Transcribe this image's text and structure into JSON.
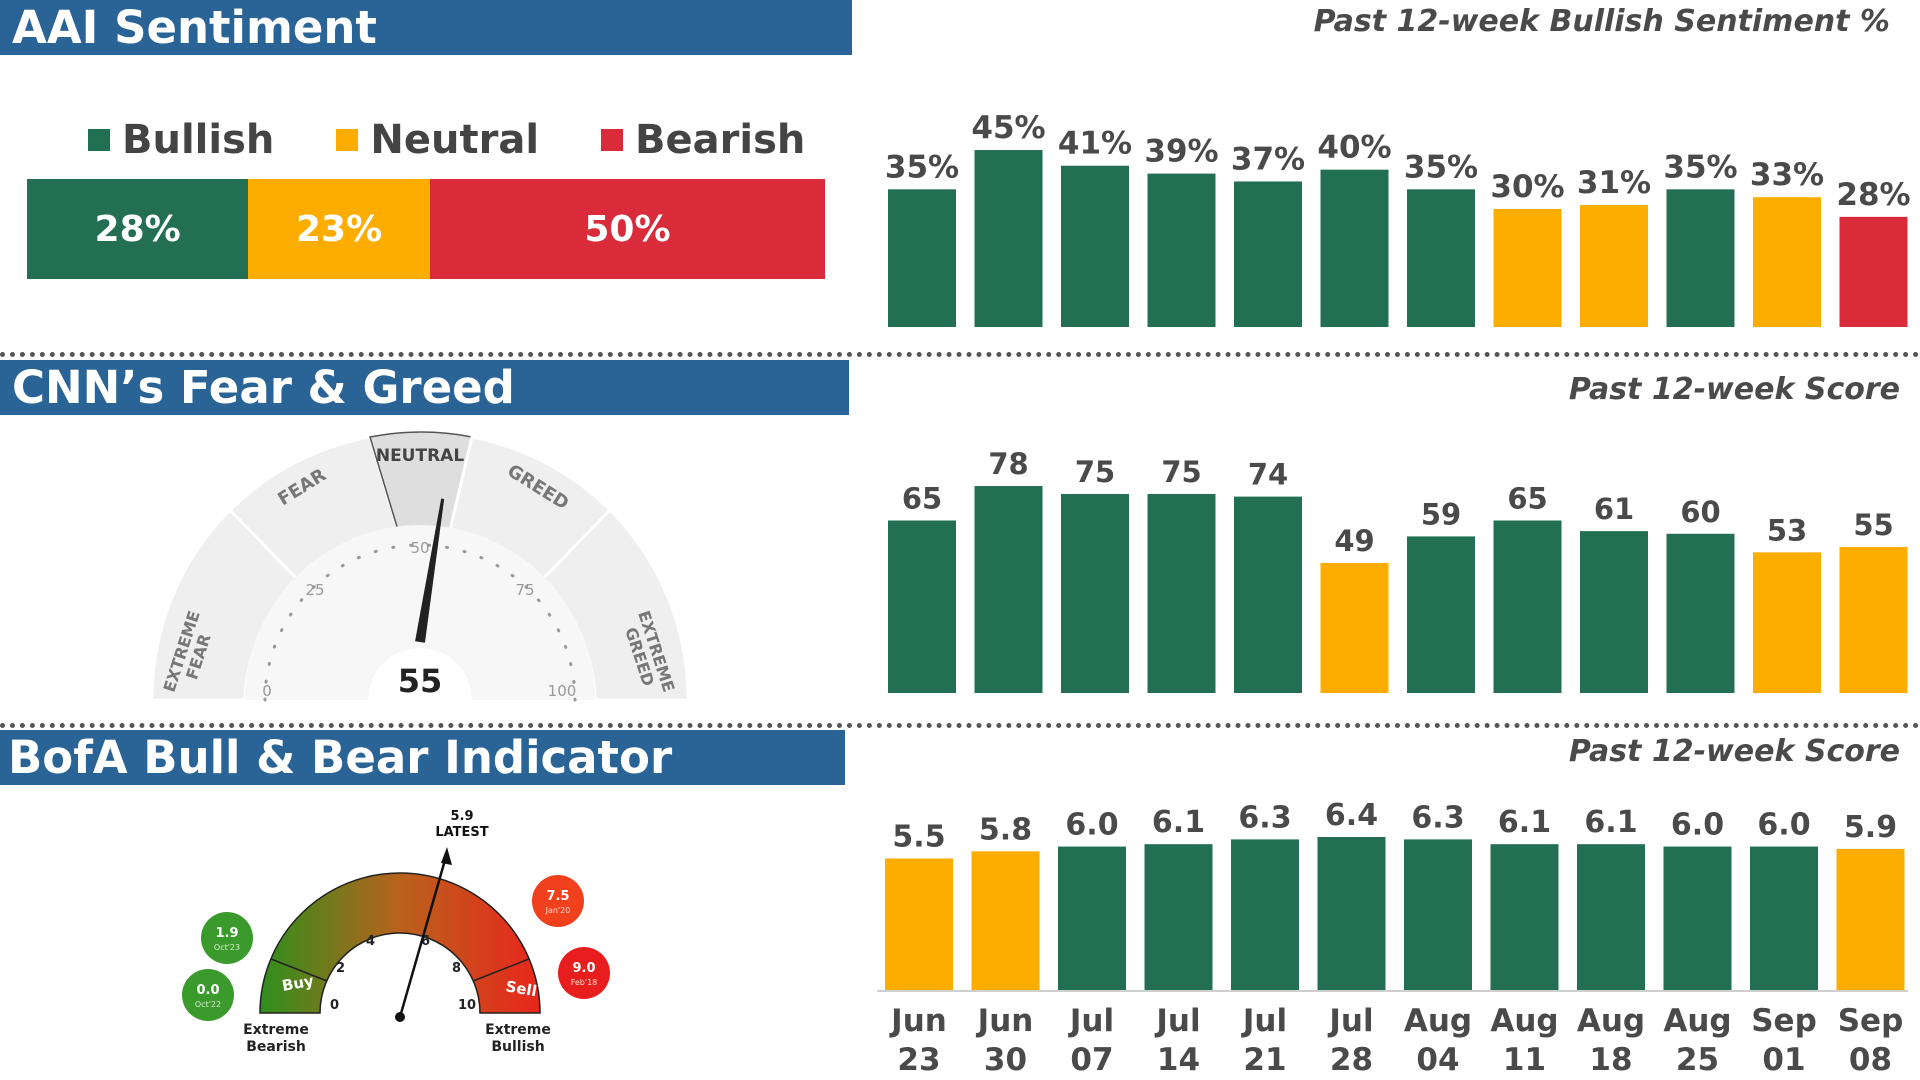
{
  "colors": {
    "green": "#226f54",
    "orange": "#fdac00",
    "red": "#d92b3a",
    "header": "#2a6496"
  },
  "aai": {
    "title": "AAI Sentiment",
    "subtitle": "Past 12-week Bullish Sentiment %",
    "legend": [
      "Bullish",
      "Neutral",
      "Bearish"
    ],
    "breakdown": [
      {
        "label": "28%",
        "value": 28,
        "color": "#226f54",
        "text_color": "#ffffff"
      },
      {
        "label": "23%",
        "value": 23,
        "color": "#fdac00",
        "text_color": "#ffffff"
      },
      {
        "label": "50%",
        "value": 50,
        "color": "#d92b3a",
        "text_color": "#ffffff"
      }
    ]
  },
  "cnn": {
    "title": "CNN’s Fear & Greed",
    "subtitle": "Past 12-week Score",
    "gauge": {
      "value": 55,
      "value_label": "55",
      "zones": [
        "EXTREME FEAR",
        "FEAR",
        "NEUTRAL",
        "GREED",
        "EXTREME GREED"
      ],
      "ticks": [
        "0",
        "25",
        "50",
        "75",
        "100"
      ]
    }
  },
  "bofa": {
    "title": "BofA Bull & Bear Indicator",
    "subtitle": "Past 12-week Score",
    "gauge": {
      "latest_value": "5.9",
      "latest_label": "LATEST",
      "ticks": [
        "0",
        "2",
        "4",
        "6",
        "8",
        "10"
      ],
      "buy_label": "Buy",
      "sell_label": "Sell",
      "left_caption": [
        "Extreme",
        "Bearish"
      ],
      "right_caption": [
        "Extreme",
        "Bullish"
      ],
      "history": [
        {
          "value": "1.9",
          "date": "Oct'23",
          "color": "#3a9a2c"
        },
        {
          "value": "0.0",
          "date": "Oct'22",
          "color": "#3a9a2c"
        },
        {
          "value": "7.5",
          "date": "Jan'20",
          "color": "#f0401c"
        },
        {
          "value": "9.0",
          "date": "Feb'18",
          "color": "#e81d1d"
        }
      ]
    }
  },
  "chart_data": [
    {
      "type": "bar",
      "title": "Past 12-week Bullish Sentiment %",
      "categories": [
        "Jun 23",
        "Jun 30",
        "Jul 07",
        "Jul 14",
        "Jul 21",
        "Jul 28",
        "Aug 04",
        "Aug 11",
        "Aug 18",
        "Aug 25",
        "Sep 01",
        "Sep 08"
      ],
      "values": [
        35,
        45,
        41,
        39,
        37,
        40,
        35,
        30,
        31,
        35,
        33,
        28
      ],
      "labels": [
        "35%",
        "45%",
        "41%",
        "39%",
        "37%",
        "40%",
        "35%",
        "30%",
        "31%",
        "35%",
        "33%",
        "28%"
      ],
      "bar_colors": [
        "#226f54",
        "#226f54",
        "#226f54",
        "#226f54",
        "#226f54",
        "#226f54",
        "#226f54",
        "#fdac00",
        "#fdac00",
        "#226f54",
        "#fdac00",
        "#d92b3a"
      ],
      "ylim": [
        0,
        45
      ]
    },
    {
      "type": "bar",
      "title": "Past 12-week Score",
      "categories": [
        "Jun 23",
        "Jun 30",
        "Jul 07",
        "Jul 14",
        "Jul 21",
        "Jul 28",
        "Aug 04",
        "Aug 11",
        "Aug 18",
        "Aug 25",
        "Sep 01",
        "Sep 08"
      ],
      "values": [
        65,
        78,
        75,
        75,
        74,
        49,
        59,
        65,
        61,
        60,
        53,
        55
      ],
      "labels": [
        "65",
        "78",
        "75",
        "75",
        "74",
        "49",
        "59",
        "65",
        "61",
        "60",
        "53",
        "55"
      ],
      "bar_colors": [
        "#226f54",
        "#226f54",
        "#226f54",
        "#226f54",
        "#226f54",
        "#fdac00",
        "#226f54",
        "#226f54",
        "#226f54",
        "#226f54",
        "#fdac00",
        "#fdac00"
      ],
      "ylim": [
        0,
        78
      ]
    },
    {
      "type": "bar",
      "title": "Past 12-week Score",
      "categories": [
        "Jun 23",
        "Jun 30",
        "Jul 07",
        "Jul 14",
        "Jul 21",
        "Jul 28",
        "Aug 04",
        "Aug 11",
        "Aug 18",
        "Aug 25",
        "Sep 01",
        "Sep 08"
      ],
      "x_labels": [
        [
          "Jun",
          "23"
        ],
        [
          "Jun",
          "30"
        ],
        [
          "Jul",
          "07"
        ],
        [
          "Jul",
          "14"
        ],
        [
          "Jul",
          "21"
        ],
        [
          "Jul",
          "28"
        ],
        [
          "Aug",
          "04"
        ],
        [
          "Aug",
          "11"
        ],
        [
          "Aug",
          "18"
        ],
        [
          "Aug",
          "25"
        ],
        [
          "Sep",
          "01"
        ],
        [
          "Sep",
          "08"
        ]
      ],
      "values": [
        5.5,
        5.8,
        6.0,
        6.1,
        6.3,
        6.4,
        6.3,
        6.1,
        6.1,
        6.0,
        6.0,
        5.9
      ],
      "labels": [
        "5.5",
        "5.8",
        "6.0",
        "6.1",
        "6.3",
        "6.4",
        "6.3",
        "6.1",
        "6.1",
        "6.0",
        "6.0",
        "5.9"
      ],
      "bar_colors": [
        "#fdac00",
        "#fdac00",
        "#226f54",
        "#226f54",
        "#226f54",
        "#226f54",
        "#226f54",
        "#226f54",
        "#226f54",
        "#226f54",
        "#226f54",
        "#fdac00"
      ],
      "ylim": [
        0,
        6.4
      ]
    }
  ]
}
